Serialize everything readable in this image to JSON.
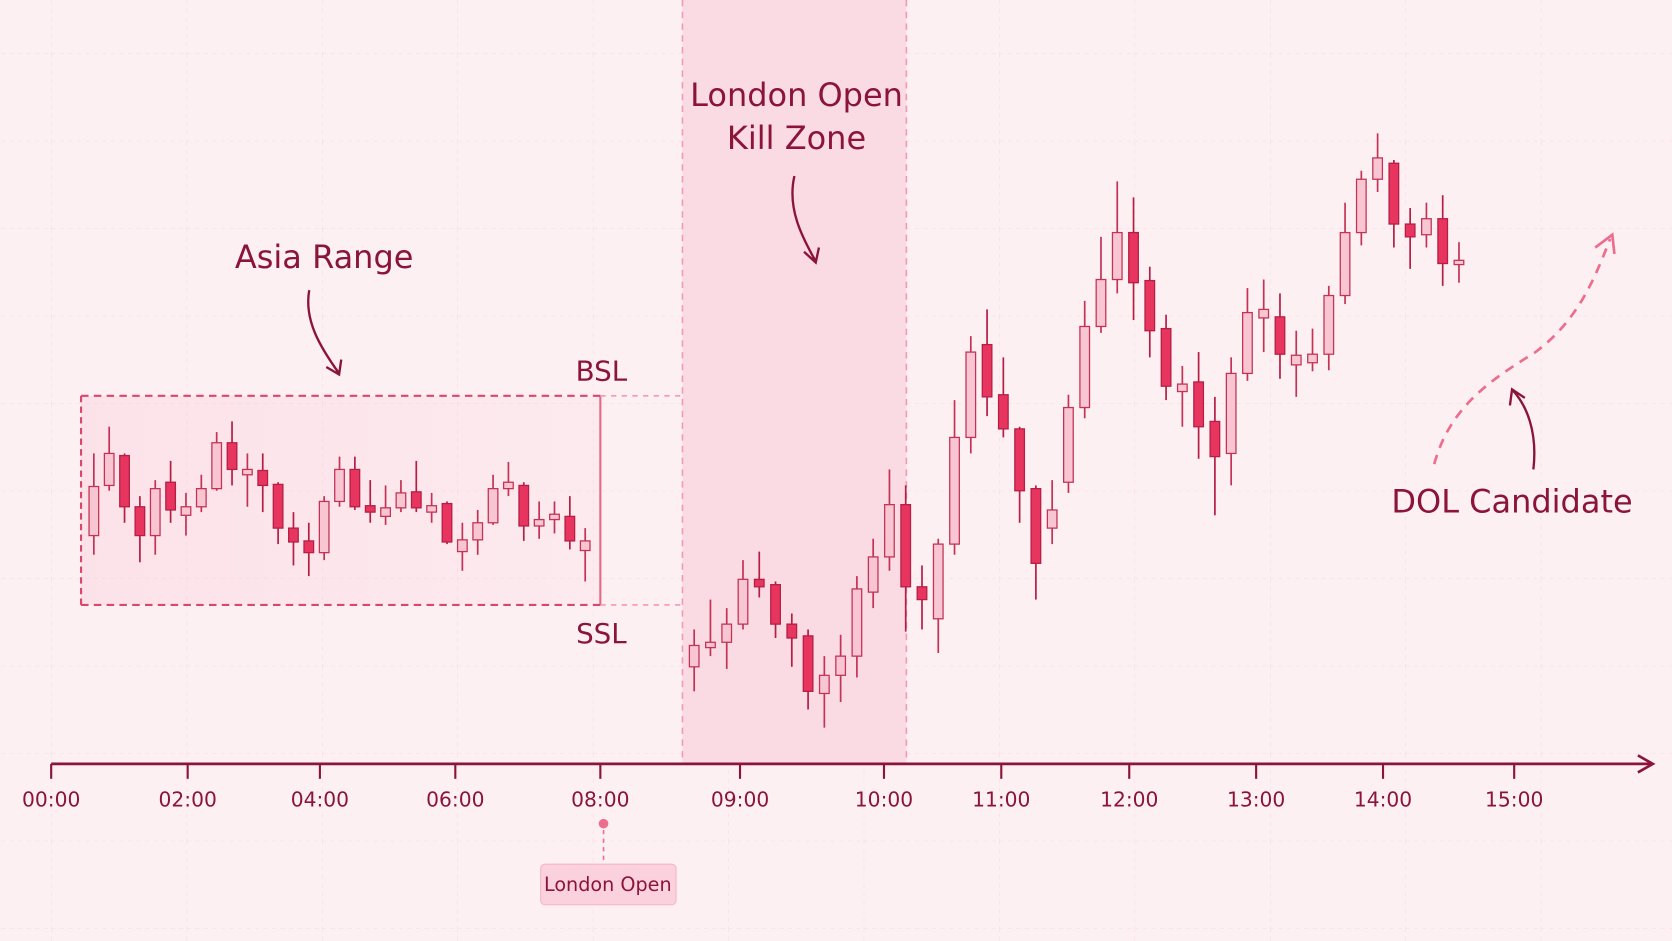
{
  "chart_data": {
    "type": "candlestick",
    "ylim": [
      0,
      70
    ],
    "up_color": "#f8c6d2",
    "down_color": "#e8355f",
    "x_ticks": [
      "00:00",
      "02:00",
      "04:00",
      "06:00",
      "08:00",
      "09:00",
      "10:00",
      "11:00",
      "12:00",
      "13:00",
      "14:00",
      "15:00"
    ],
    "candles": {
      "open": [
        21.3,
        26.0,
        28.8,
        24.0,
        21.3,
        26.3,
        23.2,
        24.0,
        25.7,
        30.0,
        27.0,
        27.4,
        26.1,
        22.0,
        20.8,
        19.7,
        24.5,
        27.5,
        24.1,
        23.1,
        23.9,
        25.4,
        23.5,
        24.3,
        19.8,
        20.9,
        22.5,
        25.7,
        26.0,
        22.2,
        22.8,
        23.1,
        19.9,
        9.0,
        10.8,
        11.3,
        13.0,
        17.2,
        16.7,
        13.0,
        11.9,
        6.5,
        8.2,
        10.0,
        16.0,
        19.3,
        24.2,
        16.5,
        13.5,
        20.5,
        30.5,
        39.2,
        34.5,
        31.3,
        25.7,
        22.0,
        26.3,
        33.3,
        40.9,
        45.3,
        49.7,
        45.2,
        40.7,
        34.8,
        35.7,
        32.0,
        29.0,
        36.5,
        41.7,
        41.8,
        37.3,
        37.5,
        38.3,
        43.8,
        49.7,
        54.7,
        56.2,
        50.5,
        49.5,
        51.0,
        46.7
      ],
      "high": [
        29.0,
        31.5,
        29.0,
        25.0,
        26.5,
        28.3,
        25.3,
        27.0,
        31.0,
        32.0,
        29.0,
        29.0,
        26.3,
        23.5,
        22.5,
        25.0,
        28.7,
        28.7,
        26.5,
        26.0,
        26.5,
        28.3,
        25.3,
        24.5,
        22.5,
        23.7,
        27.0,
        28.2,
        26.3,
        24.5,
        24.5,
        25.0,
        22.0,
        12.5,
        15.3,
        14.5,
        19.0,
        19.8,
        17.0,
        14.0,
        12.5,
        10.0,
        12.0,
        17.5,
        21.0,
        27.5,
        26.0,
        18.5,
        21.0,
        34.0,
        40.0,
        42.5,
        38.0,
        31.5,
        26.0,
        26.5,
        34.5,
        43.3,
        49.3,
        54.5,
        53.0,
        46.5,
        42.0,
        37.2,
        38.5,
        34.3,
        38.0,
        44.5,
        45.3,
        44.0,
        40.5,
        40.7,
        44.7,
        52.5,
        55.5,
        59.0,
        56.5,
        52.0,
        52.5,
        53.2,
        48.8
      ],
      "low": [
        19.5,
        25.5,
        22.5,
        18.8,
        19.5,
        22.5,
        21.3,
        23.5,
        25.5,
        26.0,
        24.0,
        23.5,
        20.5,
        18.5,
        17.5,
        19.0,
        24.0,
        23.7,
        22.5,
        22.3,
        23.5,
        23.5,
        22.5,
        20.5,
        18.0,
        19.5,
        22.3,
        25.0,
        20.8,
        21.0,
        21.5,
        20.0,
        17.0,
        6.7,
        10.0,
        8.8,
        12.5,
        15.5,
        11.7,
        9.0,
        5.0,
        3.3,
        5.7,
        8.0,
        14.5,
        18.0,
        12.3,
        12.5,
        10.3,
        19.5,
        29.0,
        32.5,
        30.5,
        22.5,
        15.3,
        20.5,
        25.3,
        32.3,
        40.3,
        44.0,
        41.5,
        38.0,
        34.0,
        31.5,
        28.5,
        23.2,
        26.0,
        35.8,
        38.5,
        36.0,
        34.3,
        36.7,
        36.8,
        43.0,
        48.5,
        53.5,
        48.3,
        46.3,
        48.3,
        44.7,
        45.0
      ],
      "close": [
        25.9,
        29.0,
        24.0,
        21.3,
        25.7,
        23.7,
        24.0,
        25.7,
        30.0,
        27.5,
        27.5,
        26.0,
        22.0,
        20.7,
        19.7,
        24.5,
        27.5,
        24.0,
        23.5,
        23.9,
        25.3,
        23.9,
        24.1,
        20.7,
        20.9,
        22.5,
        25.7,
        26.3,
        22.2,
        22.8,
        23.3,
        20.8,
        20.8,
        11.0,
        11.3,
        13.0,
        17.2,
        16.5,
        13.0,
        11.7,
        6.7,
        8.2,
        10.0,
        16.3,
        19.3,
        24.2,
        16.5,
        15.3,
        20.5,
        30.5,
        38.5,
        34.3,
        31.3,
        25.5,
        18.7,
        23.7,
        33.3,
        40.9,
        45.3,
        49.7,
        45.0,
        40.5,
        35.3,
        35.5,
        31.5,
        28.7,
        36.5,
        42.2,
        42.5,
        38.3,
        38.2,
        38.3,
        43.8,
        49.7,
        54.7,
        56.7,
        50.5,
        49.3,
        51.0,
        46.8,
        47.1
      ]
    },
    "bsl_level": 34.4,
    "ssl_level": 14.8,
    "asia_label": "Asia Range",
    "bsl_label": "BSL",
    "ssl_label": "SSL",
    "kill_zone_label": [
      "London Open",
      "Kill Zone"
    ],
    "dol_label": "DOL Candidate",
    "london_open_tag": "London Open"
  }
}
